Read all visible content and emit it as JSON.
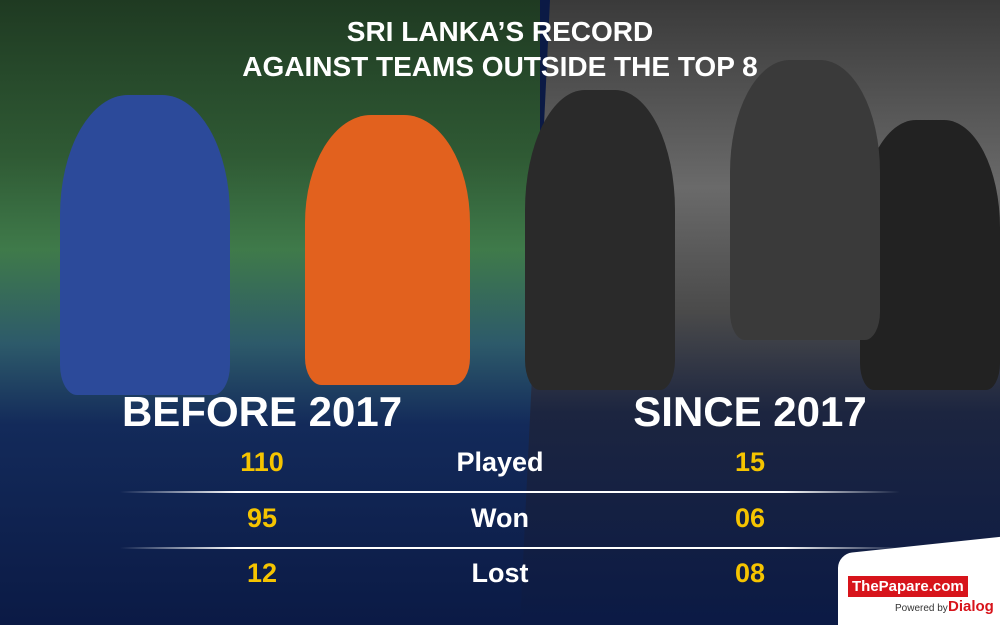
{
  "header": {
    "title_lines": [
      "SRI LANKA’S RECORD",
      "AGAINST TEAMS OUTSIDE THE TOP 8"
    ]
  },
  "table": {
    "columns": [
      "BEFORE 2017",
      "SINCE 2017"
    ],
    "rows": [
      [
        "110",
        "Played",
        "15"
      ],
      [
        "95",
        "Won",
        "06"
      ],
      [
        "12",
        "Lost",
        "08"
      ]
    ]
  },
  "logo": {
    "brand": "ThePapare.com",
    "powered": "Powered by",
    "sponsor": "Dialog"
  }
}
